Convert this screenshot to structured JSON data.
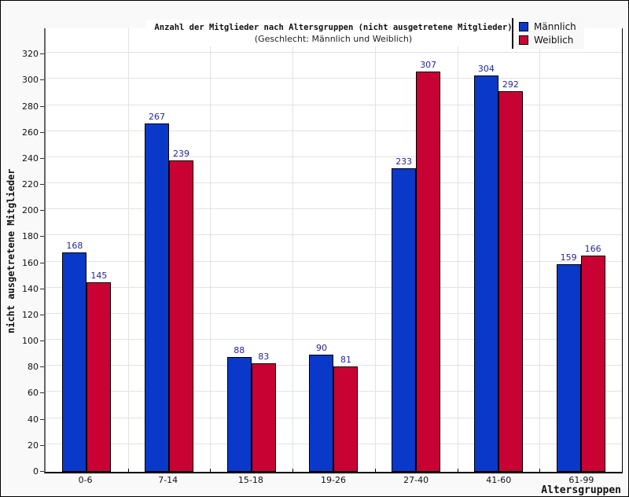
{
  "chart_data": {
    "type": "bar",
    "title": "Anzahl der Mitglieder nach Altersgruppen (nicht ausgetretene Mitglieder)",
    "subtitle": "(Geschlecht: Männlich und Weiblich)",
    "xlabel": "Altersgruppen",
    "ylabel": "nicht ausgetretene Mitglieder",
    "categories": [
      "0-6",
      "7-14",
      "15-18",
      "19-26",
      "27-40",
      "41-60",
      "61-99"
    ],
    "series": [
      {
        "name": "Männlich",
        "color": "#0A38C8",
        "values": [
          168,
          267,
          88,
          90,
          233,
          304,
          159
        ]
      },
      {
        "name": "Weiblich",
        "color": "#C80233",
        "values": [
          145,
          239,
          83,
          81,
          307,
          292,
          166
        ]
      }
    ],
    "ylim": [
      0,
      340
    ],
    "yticks": [
      0,
      20,
      40,
      60,
      80,
      100,
      120,
      140,
      160,
      180,
      200,
      220,
      240,
      260,
      280,
      300,
      320
    ],
    "grid": true,
    "legend_position": "top-right"
  },
  "colors": {
    "background": "#f9f9f9",
    "plot_background": "#ffffff",
    "grid": "#e2e2e2",
    "value_label": "#26269B",
    "y_axis_line": "#666666",
    "x_axis_line": "#000000"
  }
}
